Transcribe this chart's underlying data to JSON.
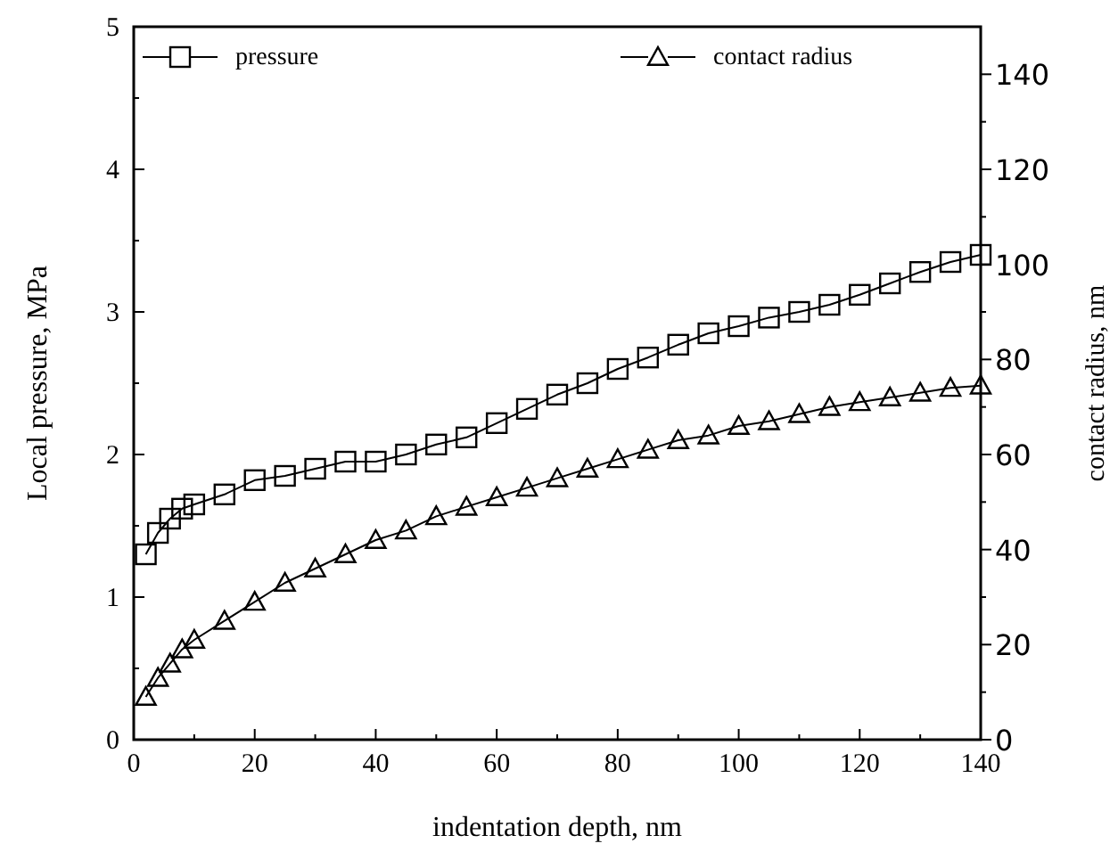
{
  "chart_data": {
    "type": "line",
    "xlabel": "indentation depth, nm",
    "ylabel": "Local pressure, MPa",
    "y2label": "contact radius, nm",
    "x": [
      2,
      4,
      6,
      8,
      10,
      15,
      20,
      25,
      30,
      35,
      40,
      45,
      50,
      55,
      60,
      65,
      70,
      75,
      80,
      85,
      90,
      95,
      100,
      105,
      110,
      115,
      120,
      125,
      130,
      135,
      140
    ],
    "xlim": [
      0,
      140
    ],
    "xticks": [
      0,
      {
        "value": 10,
        "label": null
      },
      20,
      {
        "value": 30,
        "label": null
      },
      40,
      {
        "value": 50,
        "label": null
      },
      60,
      {
        "value": 70,
        "label": null
      },
      80,
      {
        "value": 90,
        "label": null
      },
      100,
      {
        "value": 110,
        "label": null
      },
      120,
      {
        "value": 130,
        "label": null
      },
      140
    ],
    "ylim": [
      0,
      5
    ],
    "yticks": [
      0,
      {
        "value": 0.5,
        "label": null
      },
      1,
      {
        "value": 1.5,
        "label": null
      },
      2,
      {
        "value": 2.5,
        "label": null
      },
      3,
      {
        "value": 3.5,
        "label": null
      },
      4,
      {
        "value": 4.5,
        "label": null
      },
      5
    ],
    "y2lim": [
      0,
      150
    ],
    "y2ticks": [
      0,
      {
        "value": 10,
        "label": null
      },
      20,
      {
        "value": 30,
        "label": null
      },
      40,
      {
        "value": 50,
        "label": null
      },
      60,
      {
        "value": 70,
        "label": null
      },
      80,
      {
        "value": 90,
        "label": null
      },
      100,
      {
        "value": 110,
        "label": null
      },
      120,
      {
        "value": 130,
        "label": null
      },
      140
    ],
    "legend": "top",
    "line_style": "solid",
    "series": [
      {
        "name": "pressure",
        "color": "#000000",
        "marker": "square",
        "values": [
          1.3,
          1.45,
          1.55,
          1.62,
          1.65,
          1.72,
          1.82,
          1.85,
          1.9,
          1.95,
          1.95,
          2.0,
          2.07,
          2.12,
          2.22,
          2.32,
          2.42,
          2.5,
          2.6,
          2.68,
          2.77,
          2.85,
          2.9,
          2.96,
          3.0,
          3.05,
          3.12,
          3.2,
          3.28,
          3.35,
          3.4
        ]
      },
      {
        "name": "contact radius",
        "color": "#000000",
        "marker": "triangle",
        "axis": "y2",
        "values": [
          9,
          13,
          16,
          19,
          21,
          25,
          29,
          33,
          36,
          39,
          42,
          44,
          47,
          49,
          51,
          53,
          55,
          57,
          59,
          61,
          63,
          64,
          66,
          67,
          68.5,
          70,
          71,
          72,
          73,
          74,
          74.5
        ]
      }
    ]
  }
}
